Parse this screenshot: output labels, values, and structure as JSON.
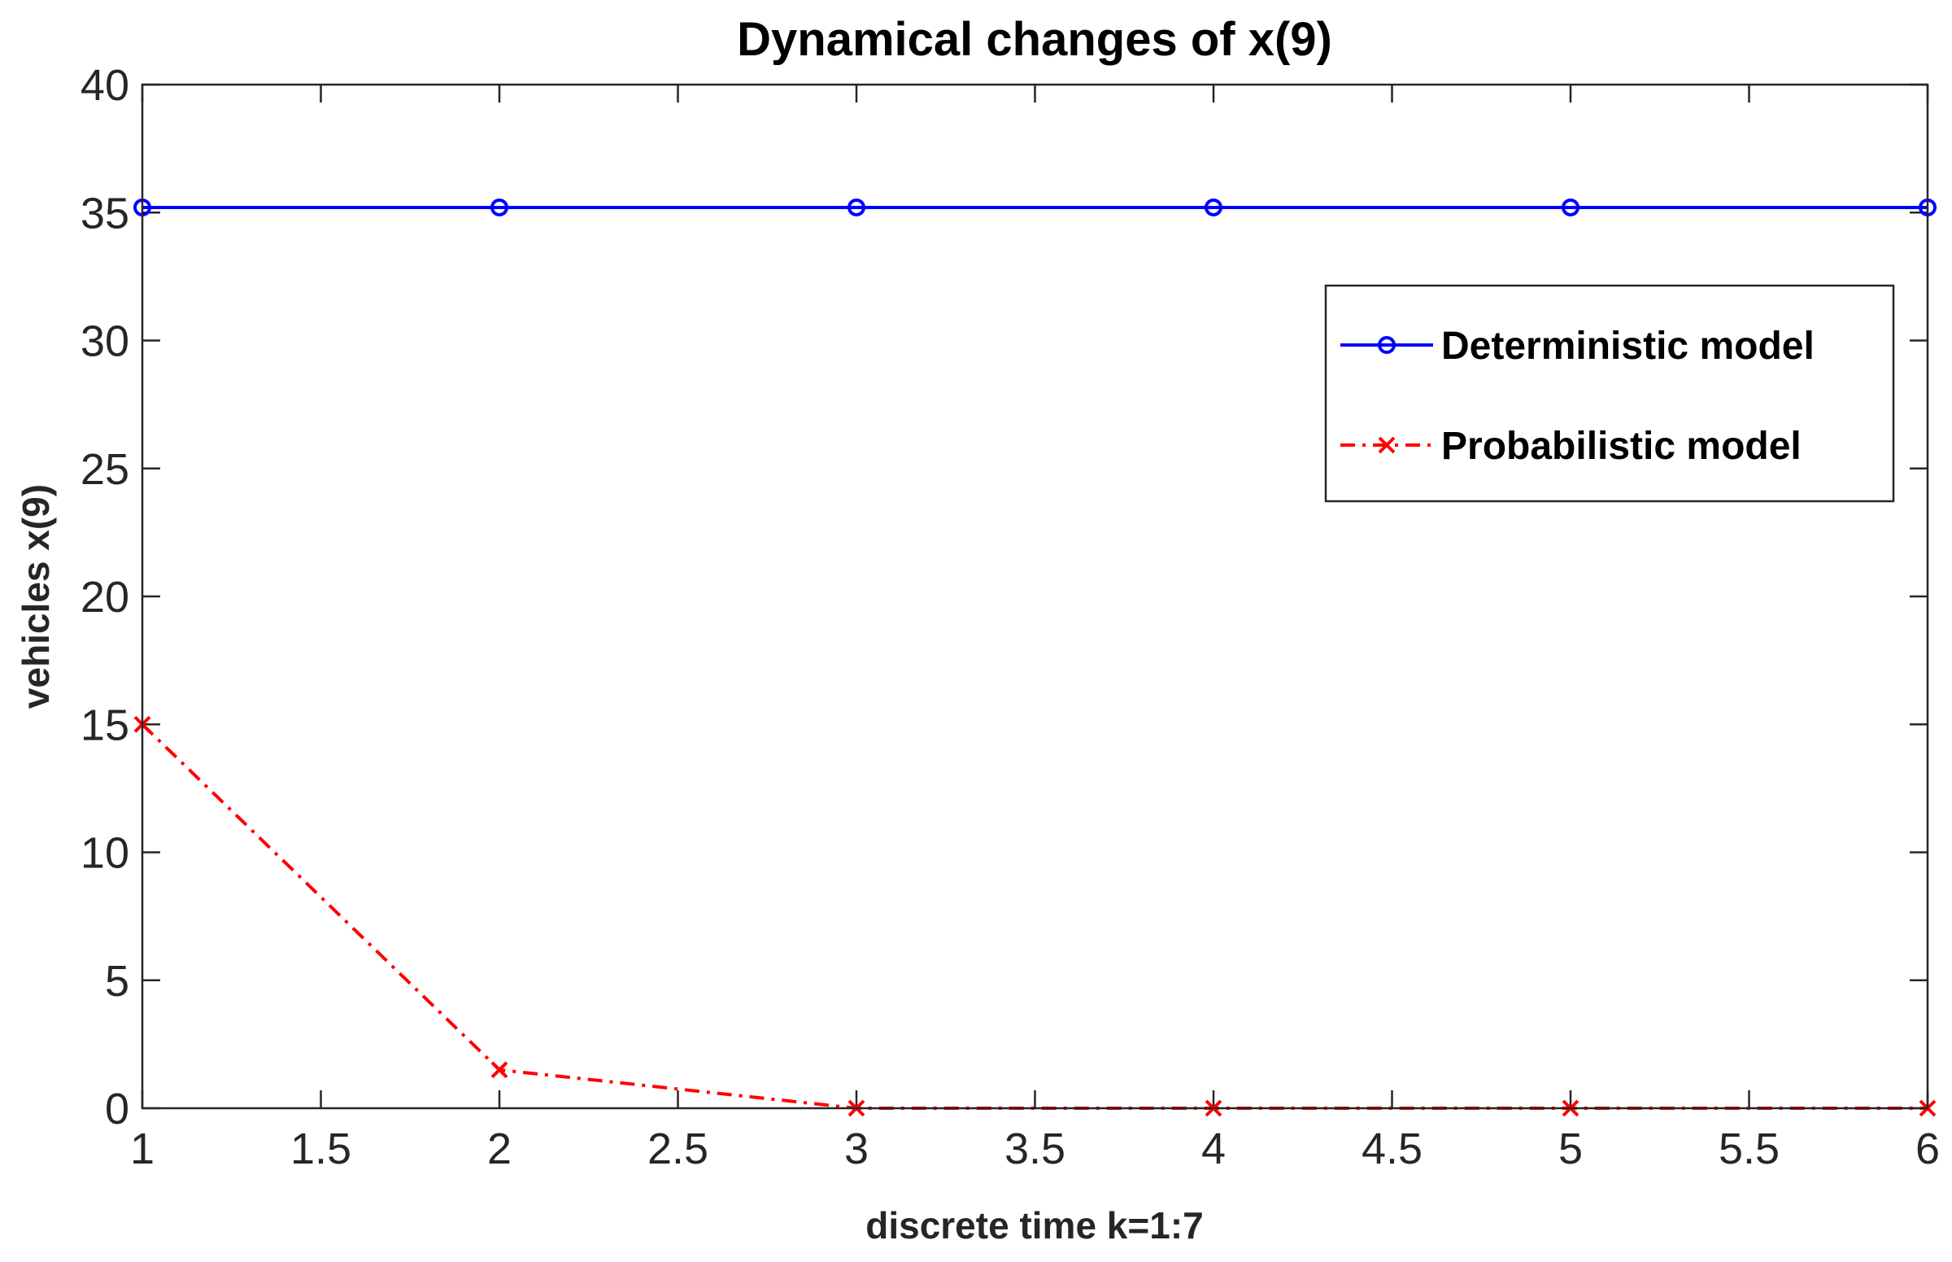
{
  "chart_data": {
    "type": "line",
    "title": "Dynamical changes of x(9)",
    "xlabel": "discrete time k=1:7",
    "ylabel": "vehicles x(9)",
    "xlim": [
      1,
      6
    ],
    "ylim": [
      0,
      40
    ],
    "xticks": [
      1,
      1.5,
      2,
      2.5,
      3,
      3.5,
      4,
      4.5,
      5,
      5.5,
      6
    ],
    "xtick_labels": [
      "1",
      "1.5",
      "2",
      "2.5",
      "3",
      "3.5",
      "4",
      "4.5",
      "5",
      "5.5",
      "6"
    ],
    "yticks": [
      0,
      5,
      10,
      15,
      20,
      25,
      30,
      35,
      40
    ],
    "ytick_labels": [
      "0",
      "5",
      "10",
      "15",
      "20",
      "25",
      "30",
      "35",
      "40"
    ],
    "grid": false,
    "legend_position": "top-right",
    "x": [
      1,
      2,
      3,
      4,
      5,
      6
    ],
    "series": [
      {
        "name": "Deterministic model",
        "values": [
          35.2,
          35.2,
          35.2,
          35.2,
          35.2,
          35.2
        ],
        "color": "#0000ff",
        "line": "solid",
        "marker": "circle"
      },
      {
        "name": "Probabilistic model",
        "values": [
          15,
          1.5,
          0,
          0,
          0,
          0
        ],
        "color": "#ff0000",
        "line": "dashdot",
        "marker": "x"
      }
    ]
  }
}
